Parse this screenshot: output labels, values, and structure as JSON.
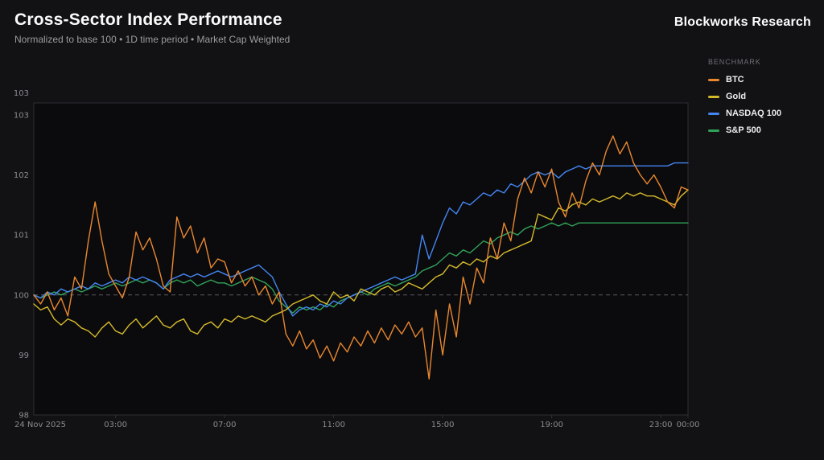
{
  "header": {
    "title": "Cross-Sector Index Performance",
    "subtitle": "Normalized to base 100 • 1D time period • Market Cap Weighted",
    "brand": "Blockworks Research"
  },
  "legend": {
    "title": "BENCHMARK"
  },
  "colors": {
    "background": "#121214",
    "plot_background": "#0b0b0d",
    "plot_border": "#2f2f35",
    "baseline_dash": "#5b5b62",
    "axis_text": "#8b8b91"
  },
  "chart_data": {
    "type": "line",
    "title": "Cross-Sector Index Performance",
    "xlabel": "",
    "ylabel": "",
    "ylim": [
      98,
      103.2
    ],
    "xlim_hours": [
      0,
      24
    ],
    "grid": false,
    "legend_position": "right",
    "x_axis": {
      "date_label": "24 Nov 2025",
      "ticks": [
        {
          "t": 3,
          "label": "03:00"
        },
        {
          "t": 7,
          "label": "07:00"
        },
        {
          "t": 11,
          "label": "11:00"
        },
        {
          "t": 15,
          "label": "15:00"
        },
        {
          "t": 19,
          "label": "19:00"
        },
        {
          "t": 23,
          "label": "23:00"
        },
        {
          "t": 24,
          "label": "00:00"
        }
      ]
    },
    "y_axis": {
      "ticks": [
        98,
        99,
        100,
        101,
        102,
        103
      ],
      "max_label": "103",
      "range": [
        98,
        103.2
      ],
      "baseline": 100
    },
    "x_start": 0,
    "x_step": 0.25,
    "series": [
      {
        "name": "BTC",
        "color": "#e8872f",
        "values": [
          100,
          99.85,
          100.05,
          99.75,
          99.95,
          99.65,
          100.3,
          100.1,
          100.9,
          101.55,
          100.9,
          100.35,
          100.15,
          99.95,
          100.3,
          101.05,
          100.75,
          100.95,
          100.6,
          100.15,
          100.05,
          101.3,
          100.95,
          101.15,
          100.7,
          100.95,
          100.45,
          100.6,
          100.55,
          100.2,
          100.4,
          100.15,
          100.3,
          100,
          100.15,
          99.85,
          100.05,
          99.35,
          99.15,
          99.4,
          99.1,
          99.25,
          98.95,
          99.15,
          98.9,
          99.2,
          99.05,
          99.3,
          99.15,
          99.4,
          99.2,
          99.45,
          99.25,
          99.5,
          99.35,
          99.55,
          99.3,
          99.45,
          98.6,
          99.75,
          99,
          99.85,
          99.3,
          100.3,
          99.85,
          100.45,
          100.2,
          100.95,
          100.6,
          101.2,
          100.9,
          101.6,
          101.95,
          101.7,
          102.05,
          101.8,
          102.1,
          101.55,
          101.3,
          101.7,
          101.45,
          101.9,
          102.2,
          102,
          102.4,
          102.65,
          102.35,
          102.55,
          102.2,
          102,
          101.85,
          102,
          101.8,
          101.55,
          101.45,
          101.8,
          101.75
        ]
      },
      {
        "name": "Gold",
        "color": "#d4ba2b",
        "values": [
          99.85,
          99.75,
          99.8,
          99.6,
          99.5,
          99.6,
          99.55,
          99.45,
          99.4,
          99.3,
          99.45,
          99.55,
          99.4,
          99.35,
          99.5,
          99.6,
          99.45,
          99.55,
          99.65,
          99.5,
          99.45,
          99.55,
          99.6,
          99.4,
          99.35,
          99.5,
          99.55,
          99.45,
          99.6,
          99.55,
          99.65,
          99.6,
          99.65,
          99.6,
          99.55,
          99.65,
          99.7,
          99.75,
          99.85,
          99.9,
          99.95,
          100,
          99.9,
          99.85,
          100.05,
          99.95,
          100,
          99.9,
          100.1,
          100.05,
          100,
          100.1,
          100.15,
          100.05,
          100.1,
          100.2,
          100.15,
          100.1,
          100.2,
          100.3,
          100.35,
          100.5,
          100.45,
          100.55,
          100.5,
          100.6,
          100.55,
          100.65,
          100.6,
          100.7,
          100.75,
          100.8,
          100.85,
          100.9,
          101.35,
          101.3,
          101.25,
          101.45,
          101.4,
          101.5,
          101.55,
          101.5,
          101.6,
          101.55,
          101.6,
          101.65,
          101.6,
          101.7,
          101.65,
          101.7,
          101.65,
          101.65,
          101.6,
          101.55,
          101.5,
          101.65,
          101.75
        ]
      },
      {
        "name": "NASDAQ 100",
        "color": "#4485f2",
        "values": [
          100,
          99.95,
          100.05,
          100,
          100.1,
          100.05,
          100.1,
          100.15,
          100.1,
          100.2,
          100.15,
          100.2,
          100.25,
          100.2,
          100.3,
          100.25,
          100.3,
          100.25,
          100.2,
          100.1,
          100.25,
          100.3,
          100.35,
          100.3,
          100.35,
          100.3,
          100.35,
          100.4,
          100.35,
          100.3,
          100.35,
          100.4,
          100.45,
          100.5,
          100.4,
          100.3,
          100.05,
          99.85,
          99.65,
          99.75,
          99.8,
          99.75,
          99.85,
          99.8,
          99.9,
          99.85,
          99.95,
          100,
          100.05,
          100.1,
          100.15,
          100.2,
          100.25,
          100.3,
          100.25,
          100.3,
          100.35,
          101,
          100.6,
          100.9,
          101.2,
          101.45,
          101.35,
          101.55,
          101.5,
          101.6,
          101.7,
          101.65,
          101.75,
          101.7,
          101.85,
          101.8,
          101.9,
          102,
          102.05,
          102,
          102.05,
          101.95,
          102.05,
          102.1,
          102.15,
          102.1,
          102.15,
          102.15,
          102.15,
          102.15,
          102.15,
          102.15,
          102.15,
          102.15,
          102.15,
          102.15,
          102.15,
          102.15,
          102.2,
          102.2,
          102.2
        ]
      },
      {
        "name": "S&P 500",
        "color": "#31a159",
        "values": [
          100,
          99.95,
          100,
          100.05,
          100,
          100.05,
          100.1,
          100.05,
          100.1,
          100.15,
          100.1,
          100.15,
          100.2,
          100.15,
          100.2,
          100.25,
          100.2,
          100.25,
          100.2,
          100.1,
          100.2,
          100.25,
          100.2,
          100.25,
          100.15,
          100.2,
          100.25,
          100.2,
          100.2,
          100.15,
          100.2,
          100.25,
          100.3,
          100.25,
          100.2,
          100.1,
          99.9,
          99.8,
          99.7,
          99.8,
          99.75,
          99.8,
          99.75,
          99.85,
          99.8,
          99.9,
          99.95,
          100,
          100.05,
          100,
          100.1,
          100.15,
          100.2,
          100.15,
          100.2,
          100.25,
          100.3,
          100.4,
          100.45,
          100.5,
          100.6,
          100.7,
          100.65,
          100.75,
          100.7,
          100.8,
          100.9,
          100.85,
          100.95,
          101,
          101.05,
          101,
          101.1,
          101.15,
          101.1,
          101.15,
          101.2,
          101.15,
          101.2,
          101.15,
          101.2,
          101.2,
          101.2,
          101.2,
          101.2,
          101.2,
          101.2,
          101.2,
          101.2,
          101.2,
          101.2,
          101.2,
          101.2,
          101.2,
          101.2,
          101.2,
          101.2
        ]
      }
    ]
  }
}
